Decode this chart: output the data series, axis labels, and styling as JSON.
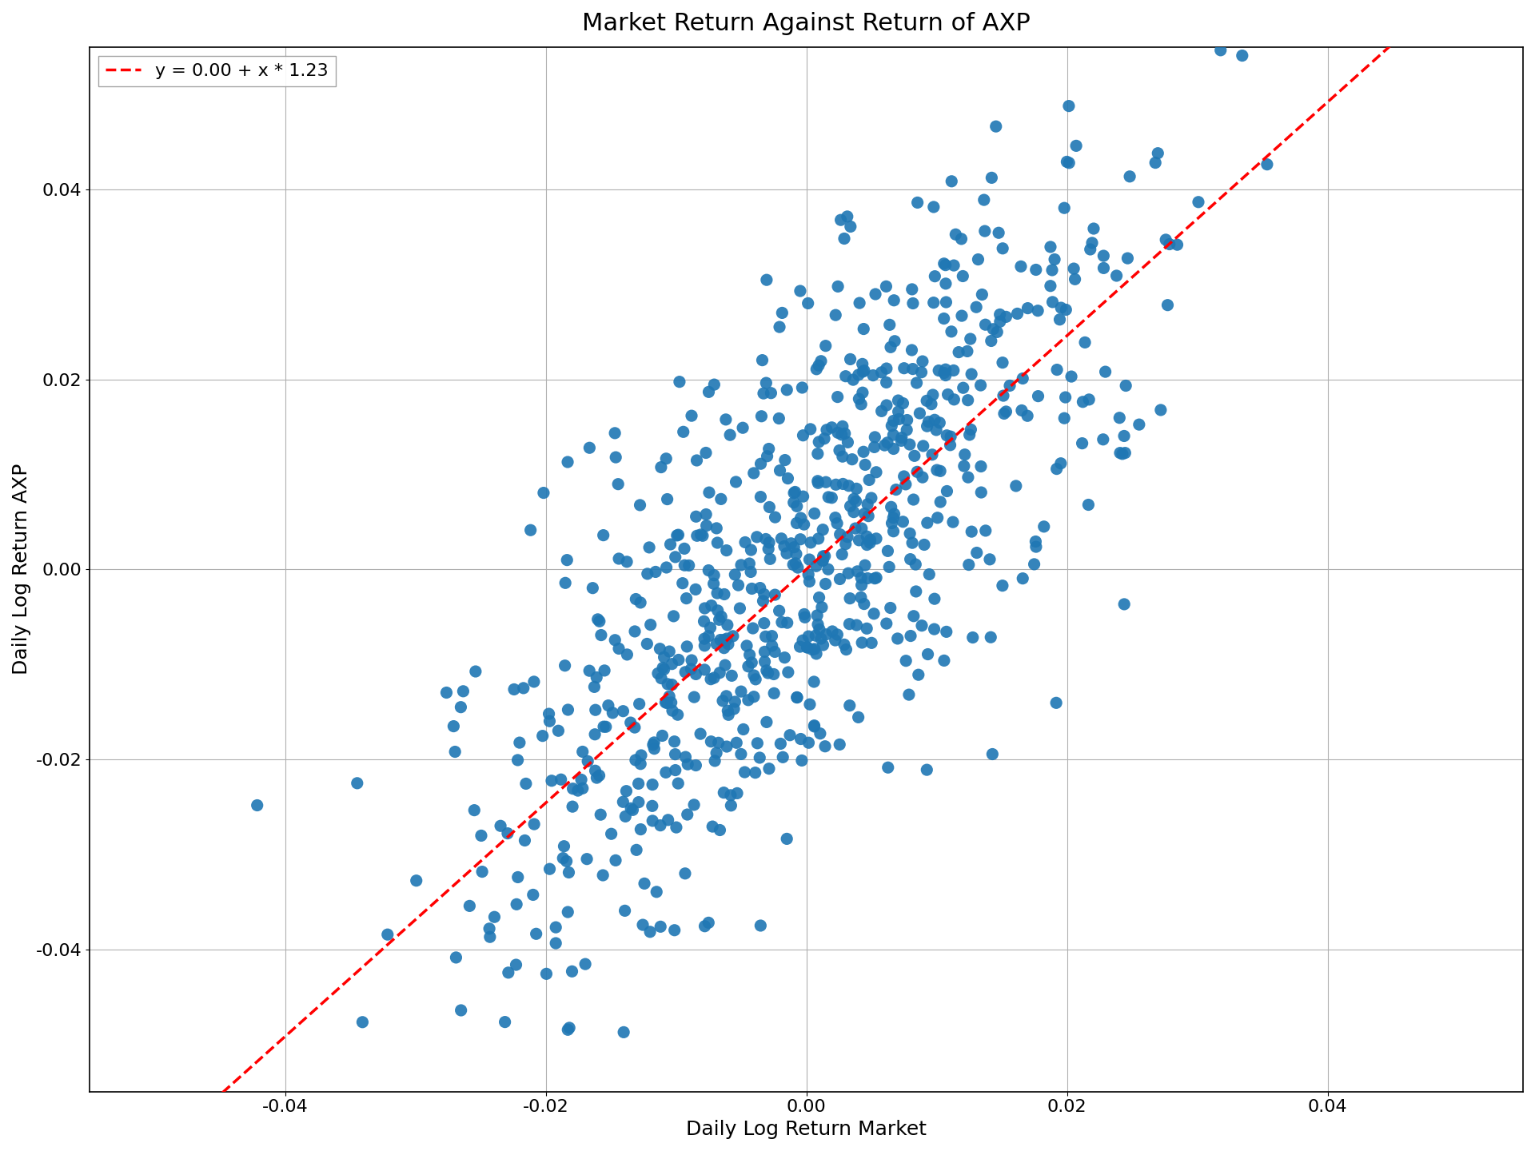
{
  "title": "Market Return Against Return of AXP",
  "xlabel": "Daily Log Return Market",
  "ylabel": "Daily Log Return AXP",
  "legend_label": "y = 0.00 + x * 1.23",
  "intercept": 0.0,
  "slope": 1.23,
  "xlim": [
    -0.055,
    0.055
  ],
  "ylim": [
    -0.055,
    0.055
  ],
  "xticks": [
    -0.04,
    -0.02,
    0.0,
    0.02,
    0.04
  ],
  "yticks": [
    -0.04,
    -0.02,
    0.0,
    0.02,
    0.04
  ],
  "dot_color": "#1f77b4",
  "line_color": "#ff0000",
  "dot_size": 120,
  "n_points": 750,
  "market_std": 0.013,
  "axp_noise_std": 0.013,
  "random_seed": 42,
  "background_color": "#ffffff",
  "grid_color": "#b0b0b0",
  "title_fontsize": 22,
  "label_fontsize": 18,
  "tick_fontsize": 16,
  "legend_fontsize": 16
}
